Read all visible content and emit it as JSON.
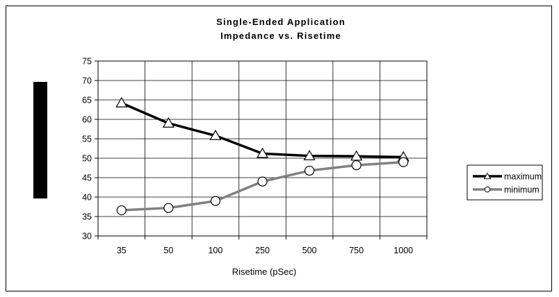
{
  "chart_data": {
    "type": "line",
    "title_lines": [
      "Single-Ended Application",
      "Impedance vs. Risetime"
    ],
    "xlabel": "Risetime (pSec)",
    "ylabel": "",
    "categories": [
      "35",
      "50",
      "100",
      "250",
      "500",
      "750",
      "1000"
    ],
    "ylim": [
      30,
      75
    ],
    "ystep": 5,
    "grid": true,
    "legend_position": "right",
    "series": [
      {
        "name": "maximum",
        "values": [
          64.2,
          59.0,
          55.8,
          51.2,
          50.6,
          50.5,
          50.3
        ],
        "color": "#000000",
        "marker": "triangle"
      },
      {
        "name": "minimum",
        "values": [
          36.6,
          37.2,
          39.0,
          44.0,
          46.8,
          48.2,
          49.0
        ],
        "color": "#808080",
        "marker": "circle"
      }
    ]
  }
}
